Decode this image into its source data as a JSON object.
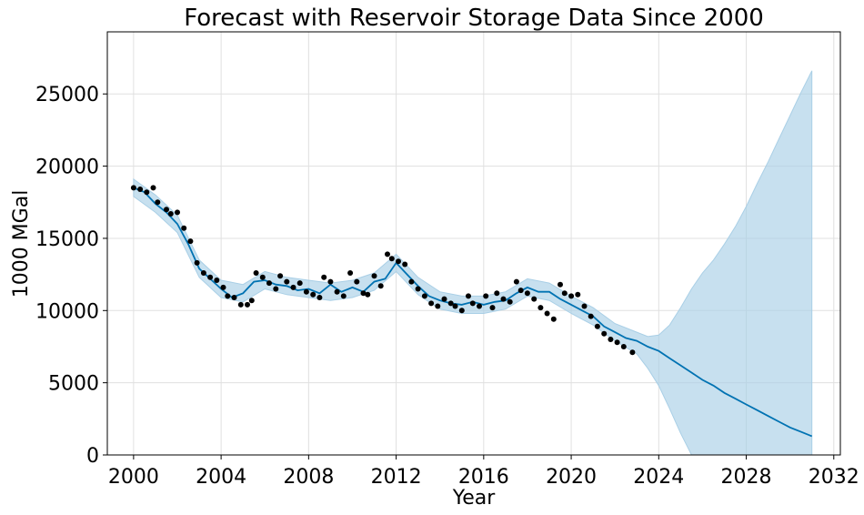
{
  "chart_data": {
    "type": "line",
    "title": "Forecast with Reservoir Storage Data Since 2000",
    "xlabel": "Year",
    "ylabel": "1000 MGal",
    "xlim": [
      1998.8,
      2032.3
    ],
    "ylim": [
      0,
      29300
    ],
    "grid": true,
    "xticks": [
      2000,
      2004,
      2008,
      2012,
      2016,
      2020,
      2024,
      2028,
      2032
    ],
    "yticks": [
      0,
      5000,
      10000,
      15000,
      20000,
      25000
    ],
    "colors": {
      "forecast": "#0072B2",
      "interval": "#a9cfe6",
      "observed": "#000000",
      "grid": "#e0e0e0",
      "frame": "#000000"
    },
    "series": [
      {
        "name": "observed",
        "kind": "points",
        "x": [
          2000.0,
          2000.3,
          2000.6,
          2000.9,
          2001.1,
          2001.5,
          2001.7,
          2002.0,
          2002.3,
          2002.6,
          2002.9,
          2003.2,
          2003.5,
          2003.8,
          2004.1,
          2004.3,
          2004.6,
          2004.9,
          2005.2,
          2005.4,
          2005.6,
          2005.9,
          2006.2,
          2006.5,
          2006.7,
          2007.0,
          2007.3,
          2007.6,
          2007.9,
          2008.2,
          2008.5,
          2008.7,
          2009.0,
          2009.3,
          2009.6,
          2009.9,
          2010.2,
          2010.5,
          2010.7,
          2011.0,
          2011.3,
          2011.6,
          2011.8,
          2012.1,
          2012.4,
          2012.7,
          2013.0,
          2013.3,
          2013.6,
          2013.9,
          2014.2,
          2014.5,
          2014.7,
          2015.0,
          2015.3,
          2015.5,
          2015.8,
          2016.1,
          2016.4,
          2016.6,
          2016.9,
          2017.2,
          2017.5,
          2017.7,
          2018.0,
          2018.3,
          2018.6,
          2018.9,
          2019.2,
          2019.5,
          2019.7,
          2020.0,
          2020.3,
          2020.6,
          2020.9,
          2021.2,
          2021.5,
          2021.8,
          2022.1,
          2022.4,
          2022.8
        ],
        "y": [
          18500,
          18400,
          18200,
          18500,
          17500,
          17000,
          16700,
          16800,
          15700,
          14800,
          13300,
          12600,
          12300,
          12100,
          11600,
          11000,
          10900,
          10400,
          10400,
          10700,
          12600,
          12300,
          11900,
          11500,
          12400,
          12000,
          11600,
          11900,
          11300,
          11100,
          10900,
          12300,
          12000,
          11300,
          11000,
          12600,
          12000,
          11200,
          11100,
          12400,
          11700,
          13900,
          13600,
          13400,
          13200,
          12000,
          11500,
          11000,
          10500,
          10300,
          10800,
          10500,
          10300,
          10000,
          11000,
          10500,
          10300,
          11000,
          10200,
          11200,
          10800,
          10600,
          12000,
          11400,
          11200,
          10800,
          10200,
          9800,
          9400,
          11800,
          11200,
          11000,
          11100,
          10300,
          9600,
          8900,
          8400,
          8000,
          7800,
          7500,
          7100
        ]
      },
      {
        "name": "forecast",
        "kind": "line",
        "x": [
          2000.0,
          2000.5,
          2001.0,
          2001.5,
          2002.0,
          2002.5,
          2003.0,
          2003.5,
          2004.0,
          2004.5,
          2005.0,
          2005.5,
          2006.0,
          2006.5,
          2007.0,
          2007.5,
          2008.0,
          2008.5,
          2009.0,
          2009.5,
          2010.0,
          2010.5,
          2011.0,
          2011.5,
          2012.0,
          2012.5,
          2013.0,
          2013.5,
          2014.0,
          2014.5,
          2015.0,
          2015.5,
          2016.0,
          2016.5,
          2017.0,
          2017.5,
          2018.0,
          2018.5,
          2019.0,
          2019.5,
          2020.0,
          2020.5,
          2021.0,
          2021.5,
          2022.0,
          2022.5,
          2023.0,
          2023.5,
          2024.0,
          2024.5,
          2025.0,
          2025.5,
          2026.0,
          2026.5,
          2027.0,
          2027.5,
          2028.0,
          2028.5,
          2029.0,
          2029.5,
          2030.0,
          2030.5,
          2031.0
        ],
        "y": [
          18500,
          18200,
          17400,
          16800,
          16000,
          14600,
          12900,
          12200,
          11500,
          10900,
          11200,
          12000,
          12100,
          11800,
          11700,
          11400,
          11500,
          11200,
          11800,
          11300,
          11600,
          11300,
          12000,
          12200,
          13300,
          12500,
          11700,
          11000,
          10700,
          10500,
          10400,
          10600,
          10400,
          10600,
          10700,
          11200,
          11600,
          11300,
          11300,
          10800,
          10400,
          10000,
          9600,
          8900,
          8500,
          8100,
          7900,
          7500,
          7200,
          6700,
          6200,
          5700,
          5200,
          4800,
          4300,
          3900,
          3500,
          3100,
          2700,
          2300,
          1900,
          1600,
          1300
        ]
      },
      {
        "name": "interval",
        "kind": "band",
        "x": [
          2000.0,
          2001.0,
          2002.0,
          2003.0,
          2004.0,
          2005.0,
          2006.0,
          2007.0,
          2008.0,
          2009.0,
          2010.0,
          2011.0,
          2012.0,
          2013.0,
          2014.0,
          2015.0,
          2016.0,
          2017.0,
          2018.0,
          2019.0,
          2020.0,
          2021.0,
          2022.0,
          2023.0,
          2023.5,
          2024.0,
          2024.5,
          2025.0,
          2025.5,
          2026.0,
          2026.5,
          2027.0,
          2027.5,
          2028.0,
          2028.5,
          2029.0,
          2029.5,
          2030.0,
          2030.5,
          2031.0
        ],
        "lower": [
          17900,
          16800,
          15400,
          12300,
          10900,
          10600,
          11500,
          11100,
          10900,
          10700,
          10900,
          11400,
          12700,
          11100,
          10100,
          9800,
          9800,
          10100,
          11000,
          10700,
          9800,
          9000,
          7900,
          7000,
          6000,
          4800,
          3200,
          1500,
          0,
          0,
          0,
          0,
          0,
          0,
          0,
          0,
          0,
          0,
          0,
          0
        ],
        "upper": [
          19100,
          18000,
          16600,
          13500,
          12100,
          11800,
          12700,
          12300,
          12100,
          11900,
          12100,
          12600,
          13900,
          12300,
          11300,
          11000,
          11000,
          11300,
          12200,
          11900,
          11000,
          10200,
          9100,
          8500,
          8200,
          8300,
          9000,
          10200,
          11500,
          12600,
          13500,
          14600,
          15800,
          17200,
          18800,
          20300,
          21900,
          23500,
          25100,
          26600
        ]
      }
    ]
  }
}
